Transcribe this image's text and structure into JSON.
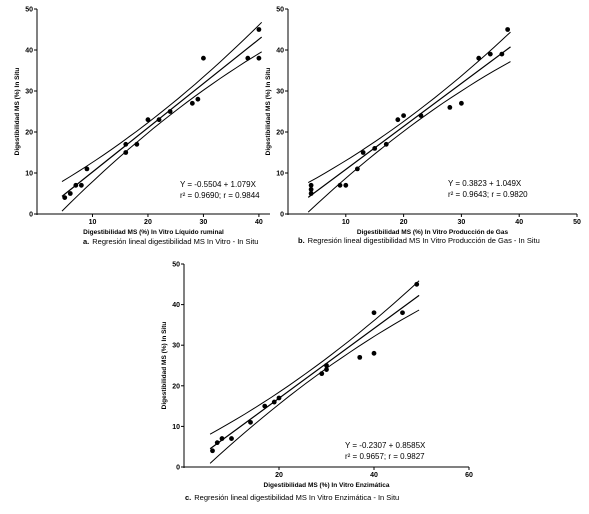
{
  "chart_data": [
    {
      "type": "scatter",
      "xlabel": "Digestibilidad MS (%) In Vitro  Líquido ruminal",
      "ylabel": "Digestibilidad MS (%) In Situ",
      "xlim": [
        0,
        42
      ],
      "ylim": [
        0,
        50
      ],
      "xticks": [
        "10",
        "20",
        "30",
        "40"
      ],
      "yticks": [
        "0",
        "10",
        "20",
        "30",
        "40",
        "50"
      ],
      "x": [
        5,
        6,
        7,
        8,
        9,
        16,
        16,
        18,
        20,
        22,
        24,
        28,
        29,
        30,
        38,
        40,
        40
      ],
      "y": [
        4,
        5,
        7,
        7,
        11,
        15,
        17,
        17,
        23,
        23,
        25,
        27,
        28,
        38,
        38,
        38,
        45
      ],
      "fit": {
        "slope": 1.079,
        "intercept": -0.5504
      },
      "equation": "Y = -0.5504 + 1.079X",
      "stats": "r² = 0.9690; r = 0.9844",
      "caption_prefix": "a.",
      "caption": "Regresión lineal digestibilidad MS In Vitro - In Situ"
    },
    {
      "type": "scatter",
      "xlabel": "Digestibilidad MS (%) In Vitro Producción de Gas",
      "ylabel": "Digestibilidad MS (%) In Situ",
      "xlim": [
        0,
        50
      ],
      "ylim": [
        0,
        50
      ],
      "xticks": [
        "10",
        "20",
        "30",
        "40",
        "50"
      ],
      "yticks": [
        "0",
        "10",
        "20",
        "30",
        "40",
        "50"
      ],
      "x": [
        4,
        4,
        4,
        9,
        10,
        12,
        13,
        15,
        17,
        19,
        20,
        23,
        28,
        30,
        33,
        35,
        37,
        38
      ],
      "y": [
        5,
        6,
        7,
        7,
        7,
        11,
        15,
        16,
        17,
        23,
        24,
        24,
        26,
        27,
        38,
        39,
        39,
        45
      ],
      "fit": {
        "slope": 1.049,
        "intercept": 0.3823
      },
      "equation": "Y = 0.3823 + 1.049X",
      "stats": "r² = 0.9643; r = 0.9820",
      "caption_prefix": "b.",
      "caption": "Regresión lineal digestibilidad MS In Vitro Producción de Gas - In Situ"
    },
    {
      "type": "scatter",
      "xlabel": "Digestibilidad MS (%) In Vitro Enzimática",
      "ylabel": "Digestibilidad MS (%) In Situ",
      "xlim": [
        0,
        60
      ],
      "ylim": [
        0,
        50
      ],
      "xticks": [
        "20",
        "40",
        "60"
      ],
      "yticks": [
        "0",
        "10",
        "20",
        "30",
        "40",
        "50"
      ],
      "x": [
        6,
        7,
        8,
        10,
        14,
        17,
        19,
        20,
        29,
        30,
        30,
        37,
        40,
        40,
        46,
        49
      ],
      "y": [
        4,
        6,
        7,
        7,
        11,
        15,
        16,
        17,
        23,
        24,
        25,
        27,
        28,
        38,
        38,
        45
      ],
      "fit": {
        "slope": 0.8585,
        "intercept": -0.2307
      },
      "equation": "Y = -0.2307 + 0.8585X",
      "stats": "r² = 0.9657; r = 0.9827",
      "caption_prefix": "c.",
      "caption": "Regresión lineal digestibilidad MS In Vitro Enzimática - In Situ"
    }
  ]
}
